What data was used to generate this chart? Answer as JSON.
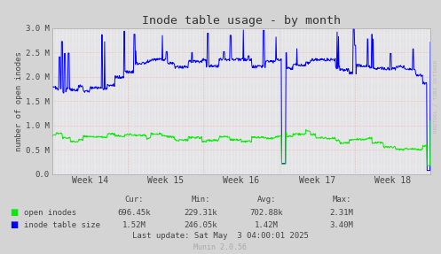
{
  "title": "Inode table usage - by month",
  "ylabel": "number of open inodes",
  "bg_color": "#d4d4d4",
  "plot_bg_color": "#e8e8e8",
  "ytick_labels": [
    "0.0",
    "0.5 M",
    "1.0 M",
    "1.5 M",
    "2.0 M",
    "2.5 M",
    "3.0 M"
  ],
  "week_labels": [
    "Week 14",
    "Week 15",
    "Week 16",
    "Week 17",
    "Week 18"
  ],
  "stats": {
    "headers": [
      "Cur:",
      "Min:",
      "Avg:",
      "Max:"
    ],
    "open_inodes": [
      "696.45k",
      "229.31k",
      "702.88k",
      "2.31M"
    ],
    "inode_table_size": [
      "1.52M",
      "246.05k",
      "1.42M",
      "3.40M"
    ]
  },
  "last_update": "Last update: Sat May  3 04:00:01 2025",
  "munin_version": "Munin 2.0.56",
  "rrdtool_label": "RRDTOOL / TOBI OETIKER",
  "open_inodes_color": "#00ee00",
  "inode_table_color": "#0000ff",
  "legend_open": "open inodes",
  "legend_inode": "inode table size",
  "n_points": 800
}
